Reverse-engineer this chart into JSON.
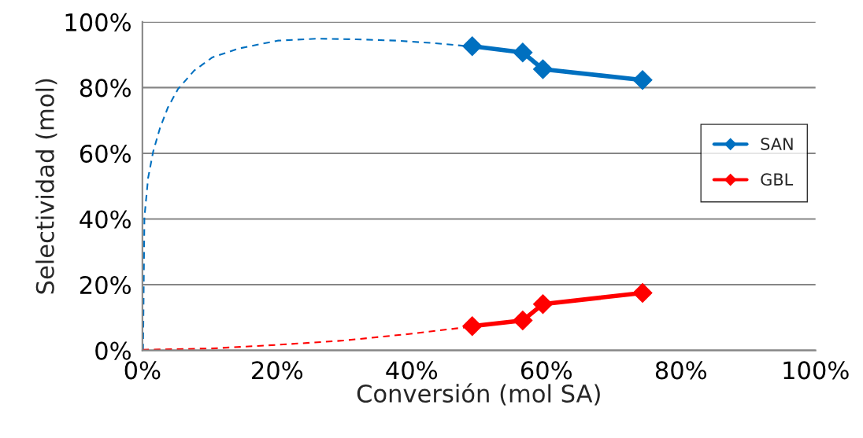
{
  "chart_data": {
    "type": "line",
    "xlabel": "Conversión (mol SA)",
    "ylabel": "Selectividad (mol)",
    "xlim": [
      0,
      100
    ],
    "ylim": [
      0,
      100
    ],
    "xticks": [
      {
        "value": 0,
        "label": "0%"
      },
      {
        "value": 20,
        "label": "20%"
      },
      {
        "value": 40,
        "label": "40%"
      },
      {
        "value": 60,
        "label": "60%"
      },
      {
        "value": 80,
        "label": "80%"
      },
      {
        "value": 100,
        "label": "100%"
      }
    ],
    "yticks": [
      {
        "value": 0,
        "label": "0%"
      },
      {
        "value": 20,
        "label": "20%"
      },
      {
        "value": 40,
        "label": "40%"
      },
      {
        "value": 60,
        "label": "60%"
      },
      {
        "value": 80,
        "label": "80%"
      },
      {
        "value": 100,
        "label": "100%"
      }
    ],
    "grid": "y",
    "legend": "right",
    "series": [
      {
        "name": "SAN",
        "color": "#0070c0",
        "marker": "diamond",
        "line_style": "solid",
        "x": [
          49.0,
          56.5,
          59.5,
          74.3
        ],
        "values": [
          92.6,
          90.7,
          85.6,
          82.3
        ]
      },
      {
        "name": "GBL",
        "color": "#ff0000",
        "marker": "diamond",
        "line_style": "solid",
        "x": [
          49.0,
          56.5,
          59.5,
          74.3
        ],
        "values": [
          7.4,
          9.1,
          14.1,
          17.5
        ]
      },
      {
        "color": "#0070c0",
        "marker": "none",
        "line_style": "dashed",
        "x": [
          0.1,
          0.3,
          0.85,
          1.6,
          2.6,
          3.8,
          5.3,
          7.7,
          10.4,
          14.3,
          20.1,
          26.0,
          31.8,
          37.7,
          43.5,
          47.8,
          49.0
        ],
        "values": [
          0,
          40.5,
          52.5,
          60.5,
          67.6,
          74.0,
          79.6,
          85.2,
          89.2,
          91.9,
          94.3,
          94.9,
          94.7,
          94.3,
          93.5,
          92.7,
          92.6
        ]
      },
      {
        "color": "#ff0000",
        "marker": "none",
        "line_style": "dashed",
        "x": [
          0,
          10.4,
          20.1,
          29.9,
          39.6,
          47.5,
          49.0
        ],
        "values": [
          0.2,
          0.6,
          1.7,
          3.0,
          5.0,
          6.9,
          7.4
        ]
      }
    ]
  }
}
